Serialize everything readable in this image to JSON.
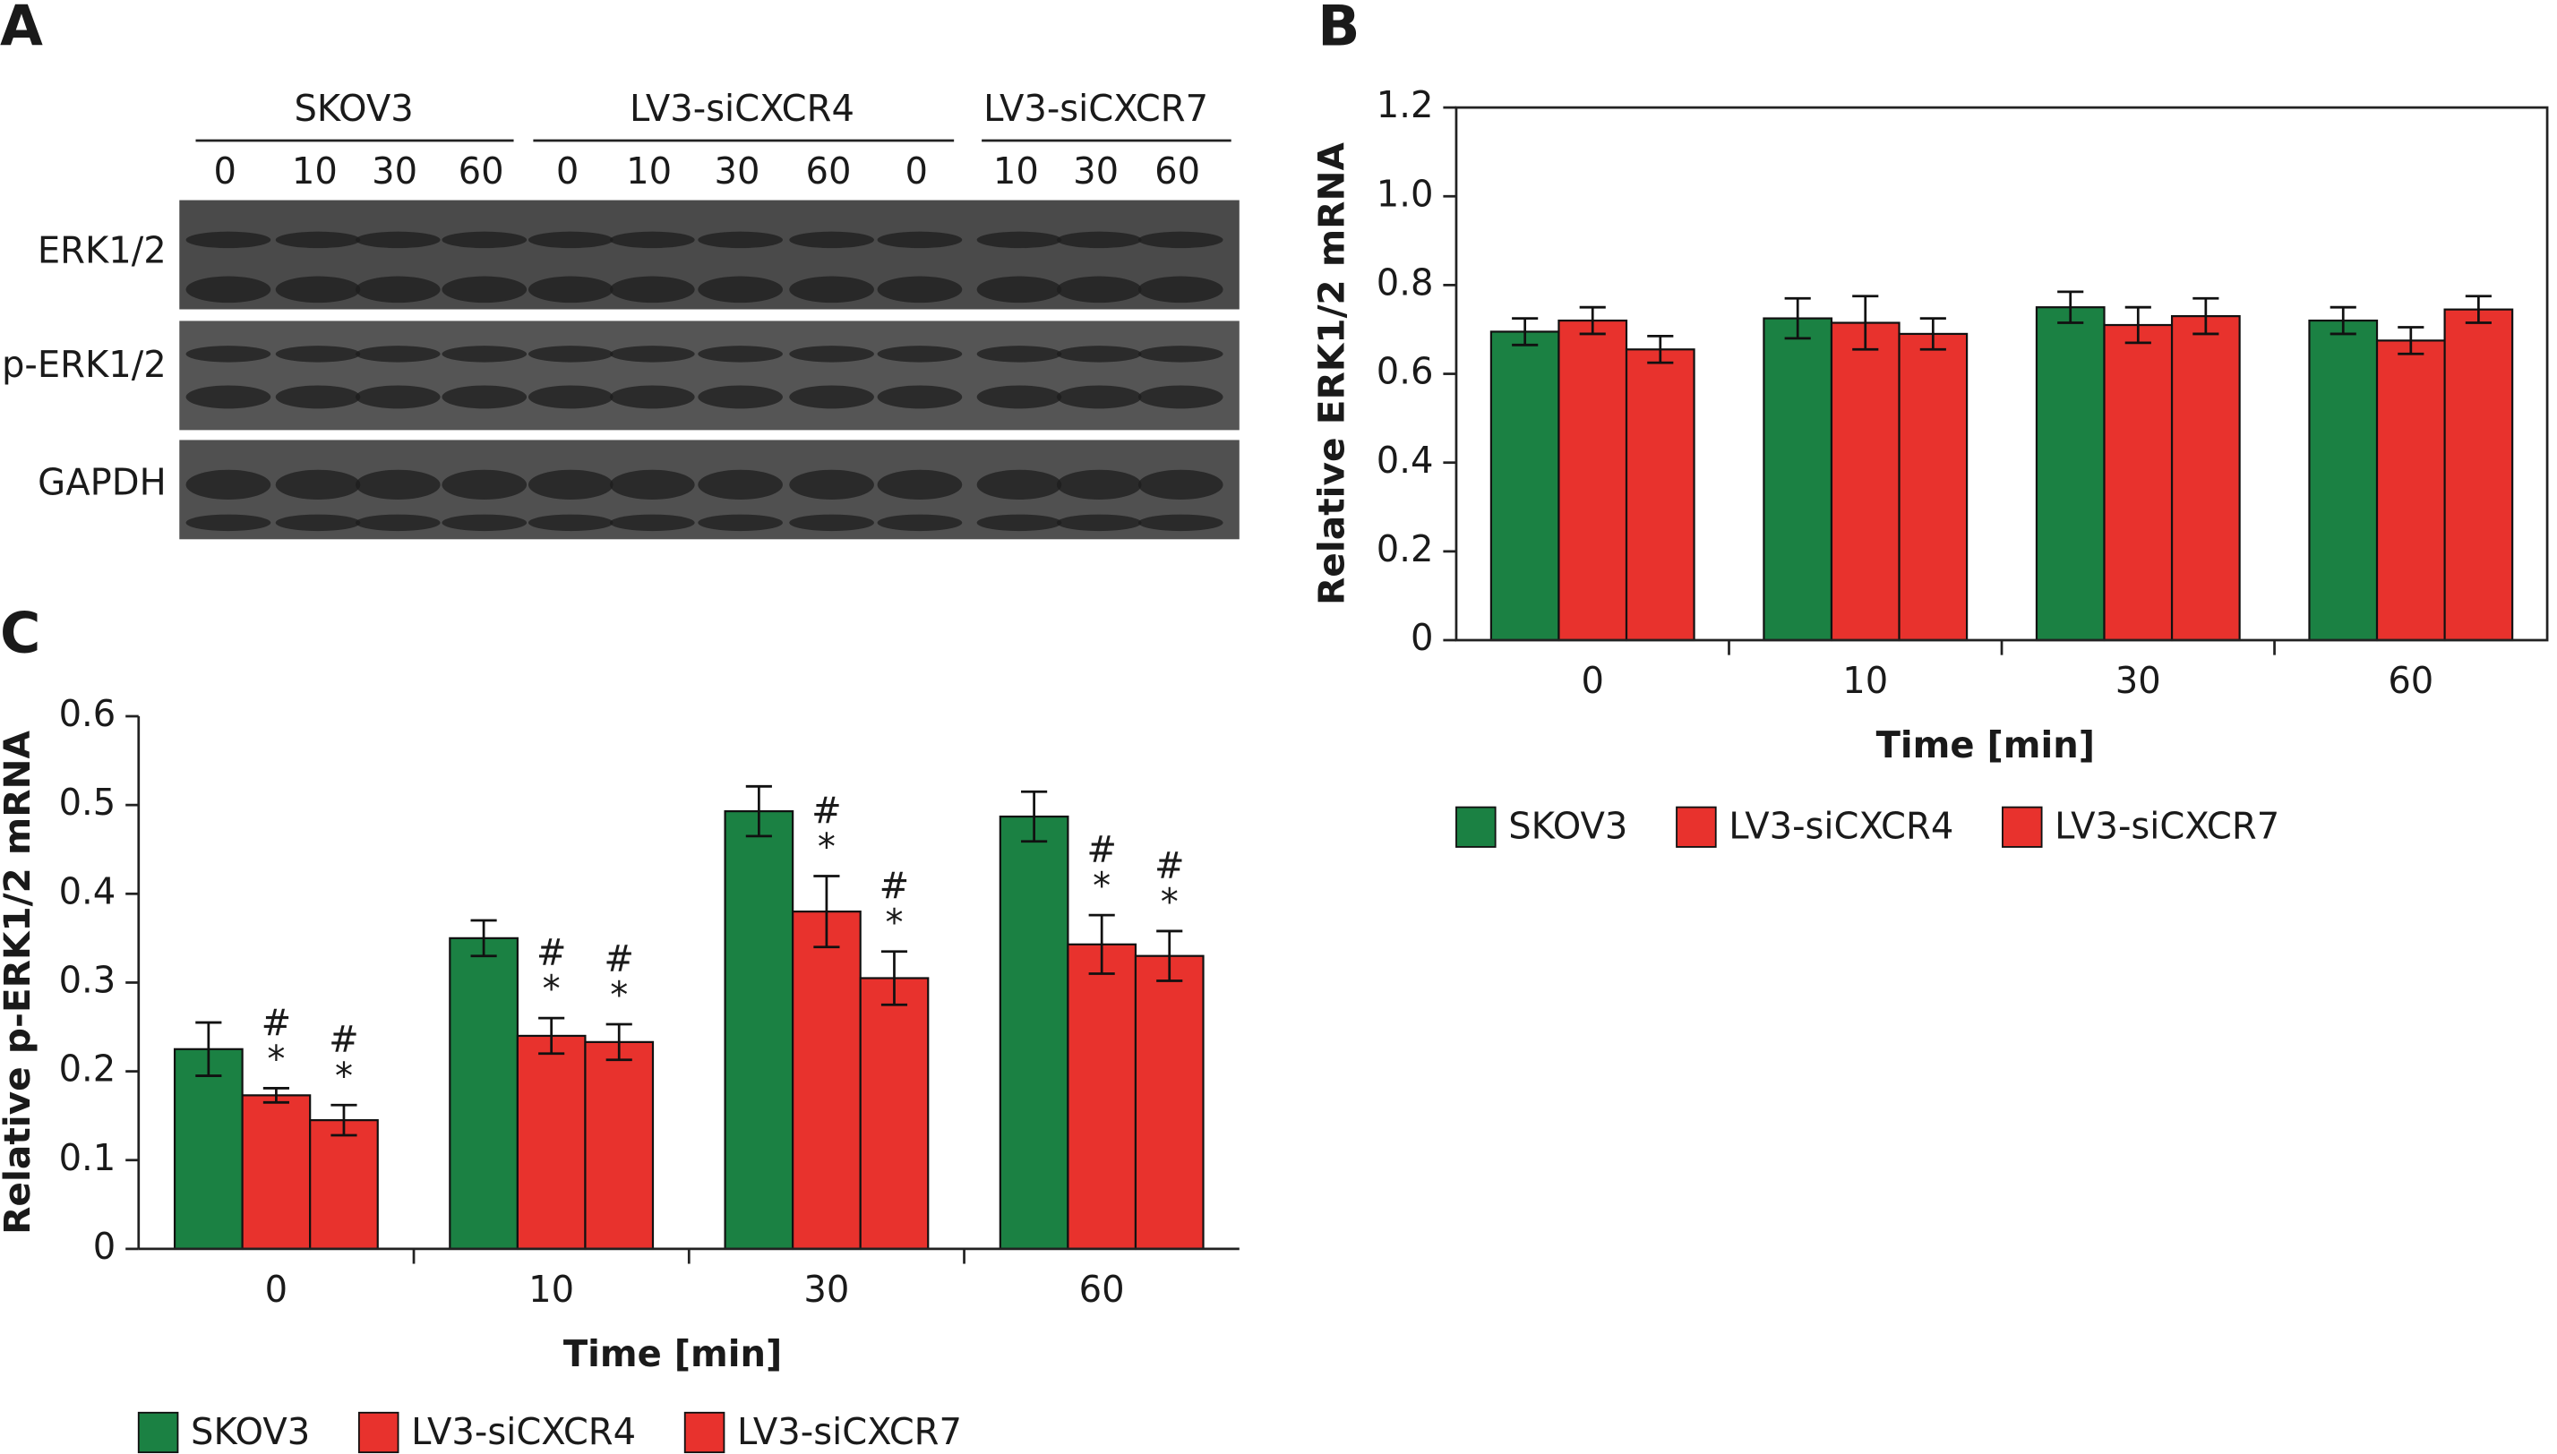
{
  "blot": {
    "panel_label": "A",
    "groups": [
      "SKOV3",
      "LV3-siCXCR4",
      "LV3-siCXCR7"
    ],
    "lanes": [
      "0",
      "10",
      "30",
      "60",
      "0",
      "10",
      "30",
      "60",
      "0",
      "10",
      "30",
      "60"
    ],
    "rows": [
      "ERK1/2",
      "p-ERK1/2",
      "GAPDH"
    ]
  },
  "chart_data": [
    {
      "type": "bar",
      "panel_label": "B",
      "x_label": "Time [min]",
      "y_label": "Relative ERK1/2 mRNA",
      "categories": [
        "0",
        "10",
        "30",
        "60"
      ],
      "series": [
        {
          "name": "SKOV3",
          "color": "#1b8143",
          "values": [
            0.695,
            0.725,
            0.75,
            0.72
          ],
          "errors": [
            0.03,
            0.045,
            0.035,
            0.03
          ]
        },
        {
          "name": "LV3-siCXCR4",
          "color": "#e8322d",
          "values": [
            0.72,
            0.715,
            0.71,
            0.675
          ],
          "errors": [
            0.03,
            0.06,
            0.04,
            0.03
          ]
        },
        {
          "name": "LV3-siCXCR7",
          "color": "#e8322d",
          "values": [
            0.655,
            0.69,
            0.73,
            0.745
          ],
          "errors": [
            0.03,
            0.035,
            0.04,
            0.03
          ]
        }
      ],
      "ylim": [
        0,
        1.2
      ],
      "yticks": [
        0,
        0.2,
        0.4,
        0.6,
        0.8,
        {
          "value": 1,
          "label": "1.0"
        },
        1.2
      ],
      "frame": "box",
      "legend": "bottom-left"
    },
    {
      "type": "bar",
      "panel_label": "C",
      "x_label": "Time [min]",
      "y_label": "Relative p-ERK1/2 mRNA",
      "categories": [
        "0",
        "10",
        "30",
        "60"
      ],
      "series": [
        {
          "name": "SKOV3",
          "color": "#1b8143",
          "values": [
            0.225,
            0.35,
            0.493,
            0.487
          ],
          "errors": [
            0.03,
            0.02,
            0.028,
            0.028
          ]
        },
        {
          "name": "LV3-siCXCR4",
          "color": "#e8322d",
          "values": [
            0.173,
            0.24,
            0.38,
            0.343
          ],
          "errors": [
            0.008,
            0.02,
            0.04,
            0.033
          ],
          "marks_above": [
            [
              "#",
              "*"
            ],
            [
              "#",
              "*"
            ],
            [
              "#",
              "*"
            ],
            [
              "#",
              "*"
            ]
          ]
        },
        {
          "name": "LV3-siCXCR7",
          "color": "#e8322d",
          "values": [
            0.145,
            0.233,
            0.305,
            0.33
          ],
          "errors": [
            0.017,
            0.02,
            0.03,
            0.028
          ],
          "marks_above": [
            [
              "#",
              "*"
            ],
            [
              "#",
              "*"
            ],
            [
              "#",
              "*"
            ],
            [
              "#",
              "*"
            ]
          ]
        }
      ],
      "ylim": [
        0,
        0.6
      ],
      "yticks": [
        0,
        0.1,
        0.2,
        0.3,
        0.4,
        0.5,
        0.6
      ],
      "frame": "axes",
      "legend": "bottom-left"
    }
  ]
}
